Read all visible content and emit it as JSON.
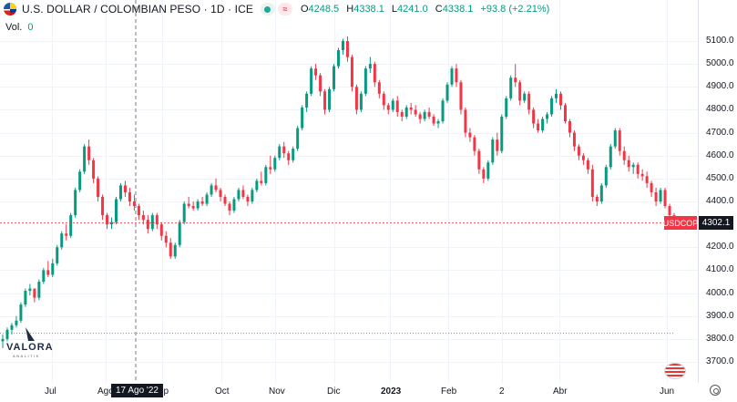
{
  "header": {
    "title": "U.S. DOLLAR / COLOMBIAN PESO · 1D · ICE",
    "ohlc": {
      "o_label": "O",
      "o": "4248.5",
      "h_label": "H",
      "h": "4338.1",
      "l_label": "L",
      "l": "4241.0",
      "c_label": "C",
      "c": "4338.1",
      "change": "+93.8 (+2.21%)"
    }
  },
  "volume": {
    "label": "Vol.",
    "value": "0"
  },
  "price_axis": [
    "5100.0",
    "5000.0",
    "4900.0",
    "4800.0",
    "4700.0",
    "4600.0",
    "4500.0",
    "4400.0",
    "4200.0",
    "4100.0",
    "4000.0",
    "3900.0",
    "3800.0",
    "3700.0"
  ],
  "time_axis": [
    {
      "label": "Jul",
      "bold": false
    },
    {
      "label": "Ago",
      "bold": false
    },
    {
      "label": "ep",
      "bold": false
    },
    {
      "label": "Oct",
      "bold": false
    },
    {
      "label": "Nov",
      "bold": false
    },
    {
      "label": "Dic",
      "bold": false
    },
    {
      "label": "2023",
      "bold": true
    },
    {
      "label": "Feb",
      "bold": false
    },
    {
      "label": "2",
      "bold": false
    },
    {
      "label": "Abr",
      "bold": false
    },
    {
      "label": "Jun",
      "bold": false
    }
  ],
  "crosshair_date": "17 Ago '22",
  "last_price": {
    "symbol": "USDCOP",
    "price": "4302.1"
  },
  "logo": {
    "name": "VALORA",
    "sub": "ANALITIK"
  },
  "colors": {
    "up": "#089981",
    "down": "#f23645",
    "crosshair": "#787b86",
    "grid": "#f0f3fa"
  },
  "chart_data": {
    "type": "candlestick",
    "symbol": "USDCOP",
    "interval": "1D",
    "y_range": [
      3670,
      5150
    ],
    "x_period": [
      "2022-05",
      "2023-06"
    ],
    "price_ticks": [
      3700,
      3800,
      3900,
      4000,
      4100,
      4200,
      4400,
      4500,
      4600,
      4700,
      4800,
      4900,
      5000,
      5100
    ],
    "ohlc_points": [
      [
        3790,
        3820,
        3760,
        3800
      ],
      [
        3800,
        3850,
        3790,
        3840
      ],
      [
        3840,
        3870,
        3820,
        3860
      ],
      [
        3860,
        3900,
        3850,
        3880
      ],
      [
        3880,
        3960,
        3870,
        3950
      ],
      [
        3950,
        4020,
        3940,
        4010
      ],
      [
        4010,
        4040,
        3990,
        4020
      ],
      [
        4020,
        3990,
        3960,
        3980
      ],
      [
        3980,
        4060,
        3970,
        4050
      ],
      [
        4050,
        4110,
        4040,
        4100
      ],
      [
        4100,
        4140,
        4070,
        4080
      ],
      [
        4080,
        4150,
        4070,
        4130
      ],
      [
        4130,
        4210,
        4120,
        4200
      ],
      [
        4200,
        4270,
        4190,
        4260
      ],
      [
        4260,
        4300,
        4230,
        4250
      ],
      [
        4250,
        4350,
        4240,
        4340
      ],
      [
        4340,
        4460,
        4330,
        4450
      ],
      [
        4450,
        4540,
        4440,
        4530
      ],
      [
        4530,
        4650,
        4520,
        4640
      ],
      [
        4640,
        4670,
        4560,
        4580
      ],
      [
        4580,
        4590,
        4480,
        4500
      ],
      [
        4500,
        4510,
        4400,
        4420
      ],
      [
        4420,
        4430,
        4320,
        4340
      ],
      [
        4340,
        4350,
        4280,
        4300
      ],
      [
        4300,
        4330,
        4280,
        4310
      ],
      [
        4310,
        4420,
        4300,
        4410
      ],
      [
        4410,
        4480,
        4400,
        4470
      ],
      [
        4470,
        4490,
        4420,
        4440
      ],
      [
        4440,
        4460,
        4380,
        4400
      ],
      [
        4400,
        4430,
        4360,
        4380
      ],
      [
        4380,
        4390,
        4320,
        4340
      ],
      [
        4340,
        4360,
        4300,
        4320
      ],
      [
        4320,
        4340,
        4260,
        4280
      ],
      [
        4280,
        4350,
        4270,
        4340
      ],
      [
        4340,
        4350,
        4280,
        4300
      ],
      [
        4300,
        4310,
        4230,
        4250
      ],
      [
        4250,
        4270,
        4200,
        4220
      ],
      [
        4220,
        4240,
        4150,
        4160
      ],
      [
        4160,
        4220,
        4150,
        4210
      ],
      [
        4210,
        4320,
        4200,
        4310
      ],
      [
        4310,
        4400,
        4300,
        4390
      ],
      [
        4390,
        4420,
        4370,
        4380
      ],
      [
        4380,
        4400,
        4360,
        4370
      ],
      [
        4370,
        4410,
        4360,
        4400
      ],
      [
        4400,
        4420,
        4380,
        4390
      ],
      [
        4390,
        4440,
        4380,
        4430
      ],
      [
        4430,
        4480,
        4420,
        4470
      ],
      [
        4470,
        4500,
        4440,
        4450
      ],
      [
        4450,
        4460,
        4400,
        4420
      ],
      [
        4420,
        4430,
        4380,
        4390
      ],
      [
        4390,
        4400,
        4340,
        4360
      ],
      [
        4360,
        4420,
        4350,
        4410
      ],
      [
        4410,
        4460,
        4400,
        4450
      ],
      [
        4450,
        4470,
        4410,
        4420
      ],
      [
        4420,
        4430,
        4380,
        4400
      ],
      [
        4400,
        4460,
        4390,
        4450
      ],
      [
        4450,
        4500,
        4440,
        4490
      ],
      [
        4490,
        4530,
        4470,
        4480
      ],
      [
        4480,
        4560,
        4470,
        4550
      ],
      [
        4550,
        4600,
        4520,
        4540
      ],
      [
        4540,
        4600,
        4530,
        4590
      ],
      [
        4590,
        4650,
        4580,
        4640
      ],
      [
        4640,
        4660,
        4590,
        4610
      ],
      [
        4610,
        4620,
        4560,
        4580
      ],
      [
        4580,
        4640,
        4570,
        4630
      ],
      [
        4630,
        4730,
        4620,
        4720
      ],
      [
        4720,
        4820,
        4710,
        4810
      ],
      [
        4810,
        4880,
        4790,
        4870
      ],
      [
        4870,
        4990,
        4860,
        4980
      ],
      [
        4980,
        5000,
        4930,
        4950
      ],
      [
        4950,
        4960,
        4860,
        4880
      ],
      [
        4880,
        4890,
        4780,
        4800
      ],
      [
        4800,
        4900,
        4790,
        4890
      ],
      [
        4890,
        5000,
        4880,
        4990
      ],
      [
        4990,
        5070,
        4980,
        5060
      ],
      [
        5060,
        5110,
        5040,
        5100
      ],
      [
        5100,
        5120,
        5010,
        5030
      ],
      [
        5030,
        5040,
        4880,
        4900
      ],
      [
        4900,
        4910,
        4780,
        4800
      ],
      [
        4800,
        4880,
        4790,
        4870
      ],
      [
        4870,
        4990,
        4860,
        4980
      ],
      [
        4980,
        5030,
        4960,
        5000
      ],
      [
        5000,
        5010,
        4900,
        4920
      ],
      [
        4920,
        4930,
        4850,
        4870
      ],
      [
        4870,
        4880,
        4800,
        4820
      ],
      [
        4820,
        4830,
        4780,
        4800
      ],
      [
        4800,
        4850,
        4790,
        4840
      ],
      [
        4840,
        4860,
        4770,
        4790
      ],
      [
        4790,
        4800,
        4750,
        4770
      ],
      [
        4770,
        4820,
        4760,
        4810
      ],
      [
        4810,
        4830,
        4780,
        4800
      ],
      [
        4800,
        4820,
        4770,
        4780
      ],
      [
        4780,
        4790,
        4740,
        4760
      ],
      [
        4760,
        4800,
        4750,
        4790
      ],
      [
        4790,
        4810,
        4760,
        4770
      ],
      [
        4770,
        4780,
        4730,
        4740
      ],
      [
        4740,
        4760,
        4720,
        4750
      ],
      [
        4750,
        4850,
        4740,
        4840
      ],
      [
        4840,
        4920,
        4830,
        4910
      ],
      [
        4910,
        4990,
        4900,
        4980
      ],
      [
        4980,
        5000,
        4900,
        4920
      ],
      [
        4920,
        4930,
        4780,
        4800
      ],
      [
        4800,
        4810,
        4680,
        4700
      ],
      [
        4700,
        4720,
        4660,
        4680
      ],
      [
        4680,
        4690,
        4600,
        4620
      ],
      [
        4620,
        4630,
        4520,
        4540
      ],
      [
        4540,
        4550,
        4480,
        4500
      ],
      [
        4500,
        4580,
        4490,
        4570
      ],
      [
        4570,
        4680,
        4560,
        4670
      ],
      [
        4670,
        4700,
        4600,
        4620
      ],
      [
        4620,
        4780,
        4610,
        4770
      ],
      [
        4770,
        4860,
        4760,
        4850
      ],
      [
        4850,
        4950,
        4840,
        4940
      ],
      [
        4940,
        5000,
        4900,
        4920
      ],
      [
        4920,
        4930,
        4820,
        4840
      ],
      [
        4840,
        4880,
        4830,
        4870
      ],
      [
        4870,
        4880,
        4780,
        4800
      ],
      [
        4800,
        4810,
        4720,
        4740
      ],
      [
        4740,
        4760,
        4700,
        4710
      ],
      [
        4710,
        4770,
        4700,
        4760
      ],
      [
        4760,
        4790,
        4740,
        4780
      ],
      [
        4780,
        4860,
        4770,
        4850
      ],
      [
        4850,
        4890,
        4830,
        4870
      ],
      [
        4870,
        4880,
        4800,
        4820
      ],
      [
        4820,
        4830,
        4740,
        4750
      ],
      [
        4750,
        4760,
        4680,
        4700
      ],
      [
        4700,
        4710,
        4620,
        4640
      ],
      [
        4640,
        4650,
        4580,
        4600
      ],
      [
        4600,
        4610,
        4560,
        4580
      ],
      [
        4580,
        4590,
        4520,
        4540
      ],
      [
        4540,
        4560,
        4400,
        4420
      ],
      [
        4420,
        4430,
        4380,
        4400
      ],
      [
        4400,
        4480,
        4390,
        4470
      ],
      [
        4470,
        4560,
        4460,
        4550
      ],
      [
        4550,
        4650,
        4540,
        4640
      ],
      [
        4640,
        4720,
        4630,
        4710
      ],
      [
        4710,
        4720,
        4600,
        4620
      ],
      [
        4620,
        4640,
        4560,
        4580
      ],
      [
        4580,
        4600,
        4530,
        4550
      ],
      [
        4550,
        4570,
        4520,
        4560
      ],
      [
        4560,
        4570,
        4500,
        4520
      ],
      [
        4520,
        4540,
        4490,
        4510
      ],
      [
        4510,
        4530,
        4460,
        4480
      ],
      [
        4480,
        4490,
        4420,
        4440
      ],
      [
        4440,
        4460,
        4380,
        4400
      ],
      [
        4400,
        4460,
        4390,
        4450
      ],
      [
        4450,
        4460,
        4370,
        4380
      ],
      [
        4380,
        4390,
        4320,
        4340
      ],
      [
        4340,
        4350,
        4290,
        4302.1
      ]
    ]
  }
}
